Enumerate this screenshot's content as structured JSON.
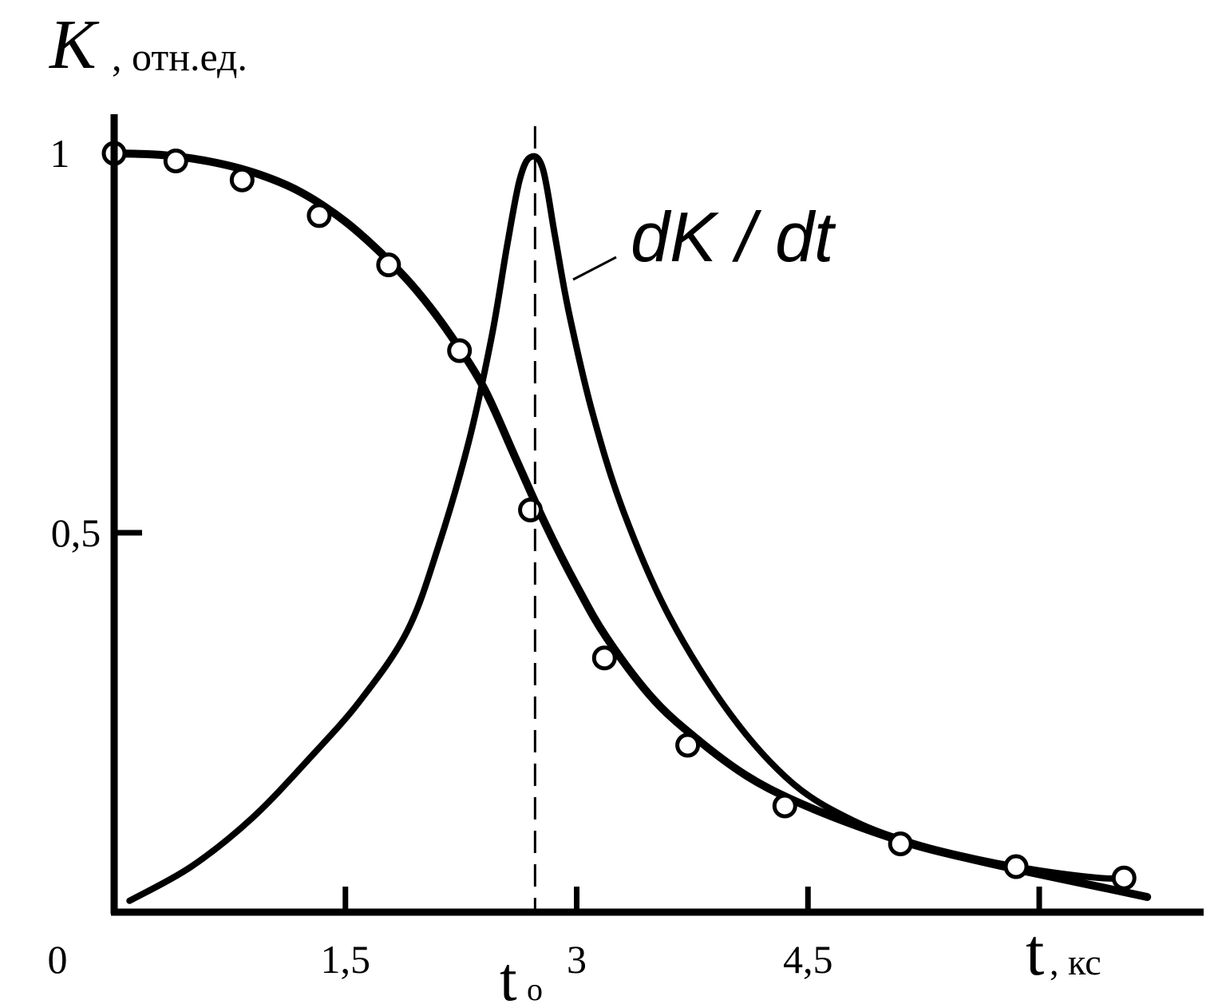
{
  "chart_data": {
    "type": "line",
    "title": "",
    "ylabel": "K",
    "ylabel_unit": ", отн.ед.",
    "xlabel": "t",
    "xlabel_unit": ", кс",
    "origin_label": "0",
    "xlim": [
      0,
      7.0
    ],
    "ylim": [
      0,
      1.0
    ],
    "x_ticks": [
      {
        "value": 1.5,
        "label": "1,5"
      },
      {
        "value": 3.0,
        "label": "3"
      },
      {
        "value": 4.5,
        "label": "4,5"
      },
      {
        "value": 6.0,
        "label": ""
      }
    ],
    "y_ticks": [
      {
        "value": 0.5,
        "label": "0,5"
      },
      {
        "value": 1.0,
        "label": "1"
      }
    ],
    "t0": {
      "value": 2.73,
      "label_main": "t",
      "label_sub": "o"
    },
    "series": [
      {
        "name": "K",
        "line_x": [
          0.0,
          0.3,
          0.6,
          0.9,
          1.2,
          1.5,
          1.8,
          2.0,
          2.2,
          2.4,
          2.6,
          2.8,
          3.0,
          3.2,
          3.5,
          3.8,
          4.1,
          4.4,
          4.8,
          5.2,
          5.6,
          6.0,
          6.4,
          6.7
        ],
        "line_y": [
          1.0,
          0.998,
          0.99,
          0.975,
          0.95,
          0.91,
          0.855,
          0.81,
          0.755,
          0.69,
          0.6,
          0.51,
          0.43,
          0.36,
          0.28,
          0.225,
          0.18,
          0.148,
          0.115,
          0.088,
          0.068,
          0.05,
          0.033,
          0.02
        ],
        "points_x": [
          0.0,
          0.4,
          0.83,
          1.33,
          1.78,
          2.24,
          2.7,
          3.18,
          3.72,
          4.35,
          5.1,
          5.85,
          6.55
        ],
        "points_y": [
          1.0,
          0.99,
          0.965,
          0.918,
          0.853,
          0.74,
          0.53,
          0.335,
          0.22,
          0.14,
          0.09,
          0.06,
          0.045
        ]
      },
      {
        "name": "dK / dt",
        "line_x": [
          0.1,
          0.5,
          0.9,
          1.3,
          1.6,
          1.9,
          2.1,
          2.3,
          2.45,
          2.55,
          2.63,
          2.7,
          2.78,
          2.86,
          2.95,
          3.1,
          3.3,
          3.6,
          4.0,
          4.4,
          4.8,
          5.2,
          5.6,
          6.0,
          6.4,
          6.6
        ],
        "line_y": [
          0.015,
          0.06,
          0.125,
          0.21,
          0.28,
          0.37,
          0.48,
          0.62,
          0.76,
          0.88,
          0.965,
          0.995,
          0.98,
          0.89,
          0.79,
          0.66,
          0.53,
          0.39,
          0.26,
          0.17,
          0.12,
          0.09,
          0.07,
          0.055,
          0.045,
          0.045
        ]
      }
    ],
    "grid": false,
    "legend": "none"
  }
}
